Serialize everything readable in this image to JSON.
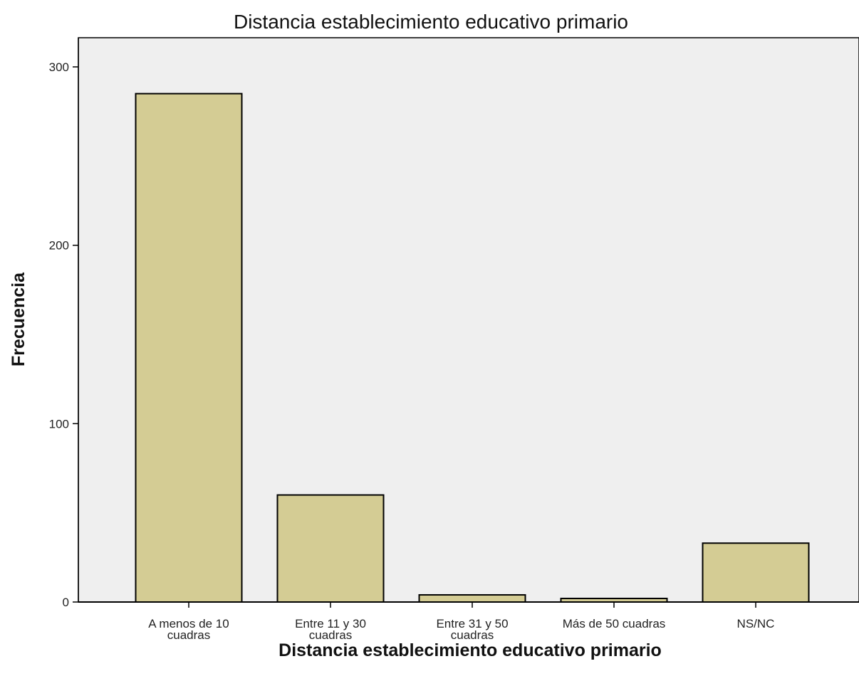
{
  "chart_data": {
    "type": "bar",
    "title": "Distancia establecimiento educativo primario",
    "xlabel": "Distancia establecimiento educativo primario",
    "ylabel": "Frecuencia",
    "categories": [
      [
        "A menos de 10",
        "cuadras"
      ],
      [
        "Entre 11 y 30",
        "cuadras"
      ],
      [
        "Entre 31 y 50",
        "cuadras"
      ],
      [
        "Más de 50 cuadras"
      ],
      [
        "NS/NC"
      ]
    ],
    "values": [
      285,
      60,
      4,
      2,
      33
    ],
    "ylim": [
      0,
      300
    ],
    "yticks": [
      0,
      100,
      200,
      300
    ],
    "grid": false,
    "colors": {
      "bar_fill": "#d4cc94",
      "bar_stroke": "#000000",
      "plot_background": "#efefef",
      "axis": "#000000"
    }
  }
}
